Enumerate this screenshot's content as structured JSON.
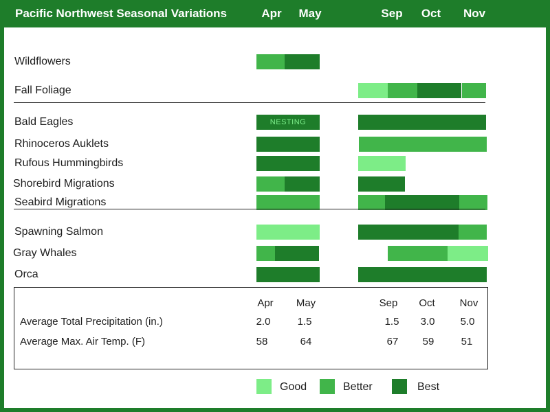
{
  "chart_data": {
    "type": "gantt-heatmap",
    "title": "Pacific Northwest Seasonal Variations",
    "months": [
      "Apr",
      "May",
      "Sep",
      "Oct",
      "Nov"
    ],
    "levels": [
      "Good",
      "Better",
      "Best"
    ],
    "colors": {
      "Good": "#7ded87",
      "Better": "#41b54a",
      "Best": "#1e7d2a"
    },
    "groups": [
      {
        "rows": [
          {
            "name": "Wildflowers",
            "spring": [
              [
                "Apr",
                "Better"
              ],
              [
                "May",
                "Best"
              ]
            ],
            "fall": []
          },
          {
            "name": "Fall Foliage",
            "spring": [],
            "fall": [
              [
                "Sep",
                "Good"
              ],
              [
                "Sep-late",
                "Better"
              ],
              [
                "Oct",
                "Best"
              ],
              [
                "Nov",
                "Better"
              ]
            ]
          }
        ]
      },
      {
        "rows": [
          {
            "name": "Bald Eagles",
            "spring": [
              [
                "Apr-May",
                "Best"
              ]
            ],
            "spring_note": "NESTING",
            "fall": [
              [
                "Sep-Nov",
                "Best"
              ]
            ]
          },
          {
            "name": "Rhinoceros Auklets",
            "spring": [
              [
                "Apr-May",
                "Best"
              ]
            ],
            "fall": [
              [
                "Sep-Nov",
                "Better"
              ]
            ]
          },
          {
            "name": "Rufous Hummingbirds",
            "spring": [
              [
                "Apr-May",
                "Best"
              ]
            ],
            "fall": [
              [
                "Sep",
                "Good"
              ]
            ]
          },
          {
            "name": "Shorebird Migrations",
            "spring": [
              [
                "Apr",
                "Better"
              ],
              [
                "May",
                "Best"
              ]
            ],
            "fall": [
              [
                "Sep",
                "Best"
              ]
            ]
          },
          {
            "name": "Seabird Migrations",
            "spring": [
              [
                "Apr-May",
                "Better"
              ]
            ],
            "fall": [
              [
                "Sep",
                "Better"
              ],
              [
                "Sep-Oct",
                "Best"
              ],
              [
                "Nov",
                "Better"
              ]
            ]
          }
        ]
      },
      {
        "rows": [
          {
            "name": "Spawning Salmon",
            "spring": [
              [
                "Apr-May",
                "Good"
              ]
            ],
            "fall": [
              [
                "Sep-Oct",
                "Best"
              ],
              [
                "Nov",
                "Better"
              ]
            ]
          },
          {
            "name": "Gray Whales",
            "spring": [
              [
                "Apr",
                "Better"
              ],
              [
                "May",
                "Best"
              ]
            ],
            "fall": [
              [
                "Sep-Oct",
                "Better"
              ],
              [
                "Nov",
                "Good"
              ]
            ]
          },
          {
            "name": "Orca",
            "spring": [
              [
                "Apr-May",
                "Best"
              ]
            ],
            "fall": [
              [
                "Sep-Nov",
                "Best"
              ]
            ]
          }
        ]
      }
    ],
    "table": {
      "months": [
        "Apr",
        "May",
        "Sep",
        "Oct",
        "Nov"
      ],
      "rows": [
        {
          "label": "Average Total Precipitation (in.)",
          "values": [
            "2.0",
            "1.5",
            "1.5",
            "3.0",
            "5.0"
          ]
        },
        {
          "label": "Average Max. Air Temp. (F)",
          "values": [
            "58",
            "64",
            "67",
            "59",
            "51"
          ]
        }
      ]
    }
  }
}
